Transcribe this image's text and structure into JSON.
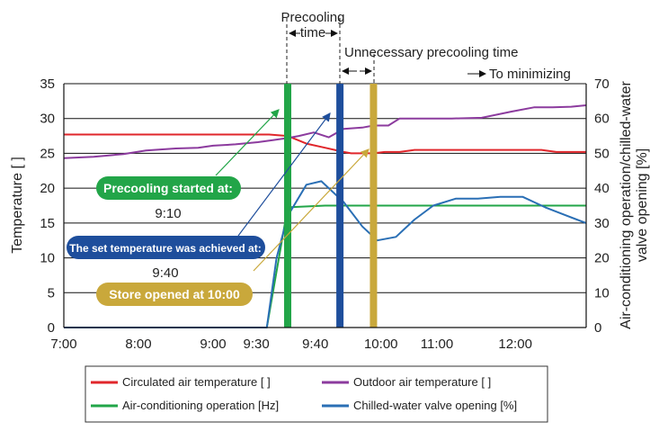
{
  "chart_data": {
    "type": "line",
    "ylabel_left": "Temperature [    ]",
    "ylabel_right_line1": "Air-conditioning operation/chilled-water",
    "ylabel_right_line2": "valve opening [%]",
    "ylim_left": [
      0,
      35
    ],
    "ylim_right": [
      0,
      70
    ],
    "yticks_left": [
      "0",
      "5",
      "10",
      "15",
      "20",
      "25",
      "30",
      "35"
    ],
    "yticks_right": [
      "0",
      "10",
      "20",
      "30",
      "40",
      "50",
      "60",
      "70"
    ],
    "xticks": [
      "7:00",
      "8:00",
      "9:00",
      "9:30",
      "9:40",
      "10:00",
      "11:00",
      "12:00"
    ],
    "grid": "horizontal",
    "legend_position": "bottom",
    "series": [
      {
        "name": "Circulated air temperature [    ]",
        "color": "#e0262b",
        "axis": "left",
        "points": [
          [
            0,
            27.7
          ],
          [
            1.5,
            27.7
          ],
          [
            2.25,
            27.7
          ],
          [
            2.5,
            27.7
          ],
          [
            2.75,
            27.7
          ],
          [
            3.0,
            27.5
          ],
          [
            3.25,
            26.4
          ],
          [
            3.5,
            25.8
          ],
          [
            3.75,
            25.2
          ],
          [
            3.85,
            25.0
          ],
          [
            4.0,
            25.0
          ],
          [
            4.15,
            25.0
          ],
          [
            4.3,
            25.2
          ],
          [
            4.5,
            25.2
          ],
          [
            4.7,
            25.5
          ],
          [
            5.0,
            25.5
          ],
          [
            5.5,
            25.5
          ],
          [
            6.0,
            25.5
          ],
          [
            6.4,
            25.5
          ],
          [
            6.6,
            25.2
          ],
          [
            7.0,
            25.2
          ]
        ]
      },
      {
        "name": "Outdoor air temperature [    ]",
        "color": "#8c3b9e",
        "axis": "left",
        "points": [
          [
            0,
            24.3
          ],
          [
            0.4,
            24.5
          ],
          [
            0.8,
            24.9
          ],
          [
            1.1,
            25.4
          ],
          [
            1.5,
            25.7
          ],
          [
            1.8,
            25.8
          ],
          [
            2.0,
            26.1
          ],
          [
            2.3,
            26.3
          ],
          [
            2.6,
            26.6
          ],
          [
            2.8,
            26.9
          ],
          [
            3.0,
            27.2
          ],
          [
            3.15,
            27.5
          ],
          [
            3.35,
            28.0
          ],
          [
            3.55,
            27.3
          ],
          [
            3.75,
            28.5
          ],
          [
            4.0,
            28.7
          ],
          [
            4.15,
            29.0
          ],
          [
            4.35,
            29.0
          ],
          [
            4.5,
            30.0
          ],
          [
            4.8,
            30.0
          ],
          [
            5.2,
            30.0
          ],
          [
            5.6,
            30.1
          ],
          [
            6.0,
            31.0
          ],
          [
            6.3,
            31.6
          ],
          [
            6.55,
            31.6
          ],
          [
            6.8,
            31.7
          ],
          [
            7.0,
            31.9
          ]
        ]
      },
      {
        "name": "Air-conditioning operation [Hz]",
        "color": "#22a548",
        "axis": "right",
        "points": [
          [
            0,
            0
          ],
          [
            2.72,
            0
          ],
          [
            3.0,
            34.5
          ],
          [
            3.5,
            35
          ],
          [
            4.0,
            35
          ],
          [
            5.0,
            35
          ],
          [
            6.0,
            35
          ],
          [
            7.0,
            35
          ]
        ]
      },
      {
        "name": "Chilled-water valve opening [%]",
        "color": "#2a6fb5",
        "axis": "right",
        "points": [
          [
            0,
            0
          ],
          [
            2.72,
            0
          ],
          [
            2.85,
            20
          ],
          [
            3.0,
            32
          ],
          [
            3.25,
            41
          ],
          [
            3.45,
            42
          ],
          [
            3.75,
            36
          ],
          [
            4.0,
            29
          ],
          [
            4.2,
            25
          ],
          [
            4.45,
            26
          ],
          [
            4.7,
            31
          ],
          [
            4.95,
            35
          ],
          [
            5.25,
            37
          ],
          [
            5.55,
            37
          ],
          [
            5.85,
            37.5
          ],
          [
            6.15,
            37.5
          ],
          [
            6.45,
            34.5
          ],
          [
            6.75,
            32
          ],
          [
            7.0,
            30
          ]
        ]
      }
    ],
    "markers": [
      {
        "label": "9:30",
        "color": "#22a548",
        "x": 3.0
      },
      {
        "label": "9:40",
        "color": "#1e4e9c",
        "x": 3.7
      },
      {
        "label": "10:00",
        "color": "#c9a83b",
        "x": 4.15
      }
    ],
    "annotations": {
      "precooling_time_line1": "Precooling",
      "precooling_time_line2": "time",
      "unnecessary_precooling": "Unnecessary precooling time",
      "to_minimizing": "To minimizing"
    },
    "callouts": [
      {
        "label": "Precooling started at:",
        "time": "9:10",
        "color": "#22a548"
      },
      {
        "label": "The set temperature was achieved at:",
        "time": "9:40",
        "color": "#1e4e9c"
      },
      {
        "label": "Store opened at 10:00",
        "time": "",
        "color": "#c9a83b"
      }
    ]
  }
}
